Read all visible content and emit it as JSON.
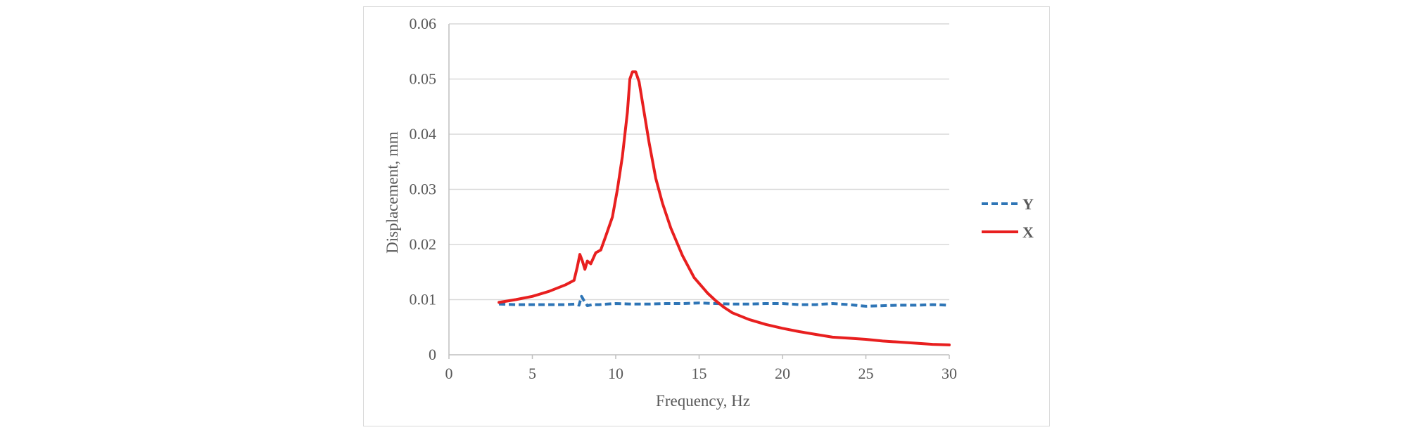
{
  "chart_data": {
    "type": "line",
    "title": "",
    "xlabel": "Frequency, Hz",
    "ylabel": "Displacement, mm",
    "xlim": [
      0,
      30
    ],
    "ylim": [
      0,
      0.06
    ],
    "x_ticks": [
      "0",
      "5",
      "10",
      "15",
      "20",
      "25",
      "30"
    ],
    "y_ticks": [
      "0",
      "0.01",
      "0.02",
      "0.03",
      "0.04",
      "0.05",
      "0.06"
    ],
    "grid": "horizontal",
    "legend_position": "right",
    "series": [
      {
        "name": "Y",
        "color": "#2e75b6",
        "style": "dashed",
        "points": [
          [
            3,
            0.0092
          ],
          [
            4,
            0.0091
          ],
          [
            5,
            0.0091
          ],
          [
            6,
            0.0091
          ],
          [
            7,
            0.0091
          ],
          [
            7.6,
            0.0092
          ],
          [
            7.8,
            0.009
          ],
          [
            7.95,
            0.0106
          ],
          [
            8.1,
            0.0098
          ],
          [
            8.3,
            0.0089
          ],
          [
            8.6,
            0.0091
          ],
          [
            9,
            0.0091
          ],
          [
            10,
            0.0093
          ],
          [
            11,
            0.0092
          ],
          [
            12,
            0.0092
          ],
          [
            13,
            0.0093
          ],
          [
            14,
            0.0093
          ],
          [
            15,
            0.0094
          ],
          [
            16,
            0.0093
          ],
          [
            17,
            0.0092
          ],
          [
            18,
            0.0092
          ],
          [
            19,
            0.0093
          ],
          [
            20,
            0.0093
          ],
          [
            21,
            0.0091
          ],
          [
            22,
            0.0091
          ],
          [
            23,
            0.0093
          ],
          [
            24,
            0.0091
          ],
          [
            25,
            0.0088
          ],
          [
            26,
            0.0089
          ],
          [
            27,
            0.009
          ],
          [
            28,
            0.009
          ],
          [
            29,
            0.0091
          ],
          [
            30,
            0.009
          ]
        ]
      },
      {
        "name": "X",
        "color": "#e81f1f",
        "style": "solid",
        "points": [
          [
            3,
            0.0095
          ],
          [
            4,
            0.01
          ],
          [
            5,
            0.0106
          ],
          [
            6,
            0.0115
          ],
          [
            7,
            0.0127
          ],
          [
            7.5,
            0.0135
          ],
          [
            7.7,
            0.016
          ],
          [
            7.85,
            0.0182
          ],
          [
            8.0,
            0.017
          ],
          [
            8.15,
            0.0155
          ],
          [
            8.3,
            0.017
          ],
          [
            8.5,
            0.0165
          ],
          [
            8.8,
            0.0185
          ],
          [
            9.1,
            0.019
          ],
          [
            9.4,
            0.0215
          ],
          [
            9.8,
            0.025
          ],
          [
            10.1,
            0.03
          ],
          [
            10.4,
            0.036
          ],
          [
            10.7,
            0.044
          ],
          [
            10.85,
            0.05
          ],
          [
            11.0,
            0.0513
          ],
          [
            11.2,
            0.0513
          ],
          [
            11.4,
            0.0495
          ],
          [
            11.7,
            0.044
          ],
          [
            12.0,
            0.0385
          ],
          [
            12.4,
            0.032
          ],
          [
            12.8,
            0.0275
          ],
          [
            13.3,
            0.023
          ],
          [
            14.0,
            0.018
          ],
          [
            14.7,
            0.014
          ],
          [
            15.5,
            0.0112
          ],
          [
            16.0,
            0.0098
          ],
          [
            16.5,
            0.0086
          ],
          [
            17.0,
            0.0076
          ],
          [
            18.0,
            0.0064
          ],
          [
            19.0,
            0.0055
          ],
          [
            20.0,
            0.0048
          ],
          [
            21.0,
            0.0042
          ],
          [
            22.0,
            0.0037
          ],
          [
            23.0,
            0.0032
          ],
          [
            24.0,
            0.003
          ],
          [
            25.0,
            0.0028
          ],
          [
            26.0,
            0.0025
          ],
          [
            27.0,
            0.0023
          ],
          [
            28.0,
            0.0021
          ],
          [
            29.0,
            0.0019
          ],
          [
            30.0,
            0.0018
          ]
        ]
      }
    ]
  }
}
